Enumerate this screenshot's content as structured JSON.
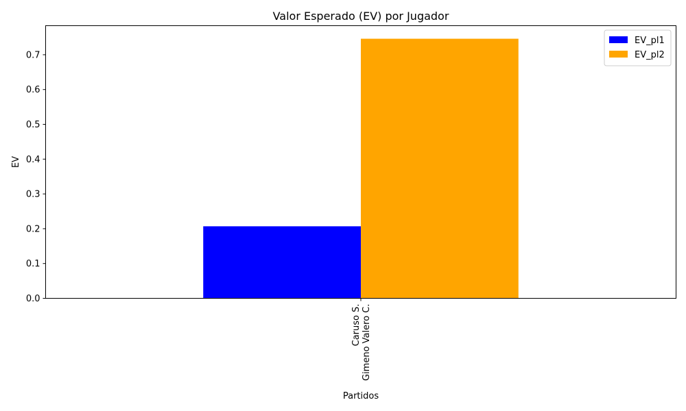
{
  "chart_data": {
    "type": "bar",
    "title": "Valor Esperado (EV) por Jugador",
    "xlabel": "Partidos",
    "ylabel": "EV",
    "categories": [
      "Caruso S.\nGimeno Valero C."
    ],
    "series": [
      {
        "name": "EV_pl1",
        "values": [
          0.207
        ],
        "color": "#0000ff"
      },
      {
        "name": "EV_pl2",
        "values": [
          0.746
        ],
        "color": "#ffa500"
      }
    ],
    "ylim": [
      0,
      0.7835
    ],
    "yticks": [
      0.0,
      0.1,
      0.2,
      0.3,
      0.4,
      0.5,
      0.6,
      0.7
    ],
    "ytick_labels": [
      "0.0",
      "0.1",
      "0.2",
      "0.3",
      "0.4",
      "0.5",
      "0.6",
      "0.7"
    ],
    "grid": false,
    "legend_position": "top-right"
  }
}
